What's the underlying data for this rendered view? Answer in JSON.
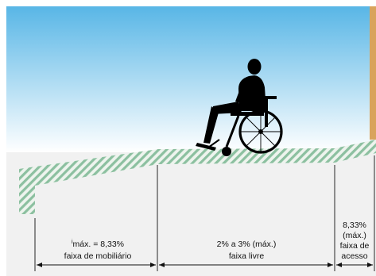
{
  "diagram": {
    "labels": {
      "zone1_slope_marker": "i",
      "zone1_slope": "máx. = 8,33%",
      "zone1_name": "faixa de mobiliário",
      "zone2_slope": "2% a 3% (máx.)",
      "zone2_name": "faixa livre",
      "zone3_slope": "8,33%",
      "zone3_max": "(máx.)",
      "zone3_name_1": "faixa de",
      "zone3_name_2": "acesso"
    },
    "colors": {
      "sky_top": "#58b6e6",
      "sky_bottom": "#ffffff",
      "sidewalk_stripe": "#8cc0a0",
      "sidewalk_base": "#eef4ee",
      "building_wall": "#d9a35c",
      "wheelchair_user": "#000000",
      "background": "#f1f1f1"
    },
    "icons": [
      "wheelchair-user-icon"
    ]
  }
}
